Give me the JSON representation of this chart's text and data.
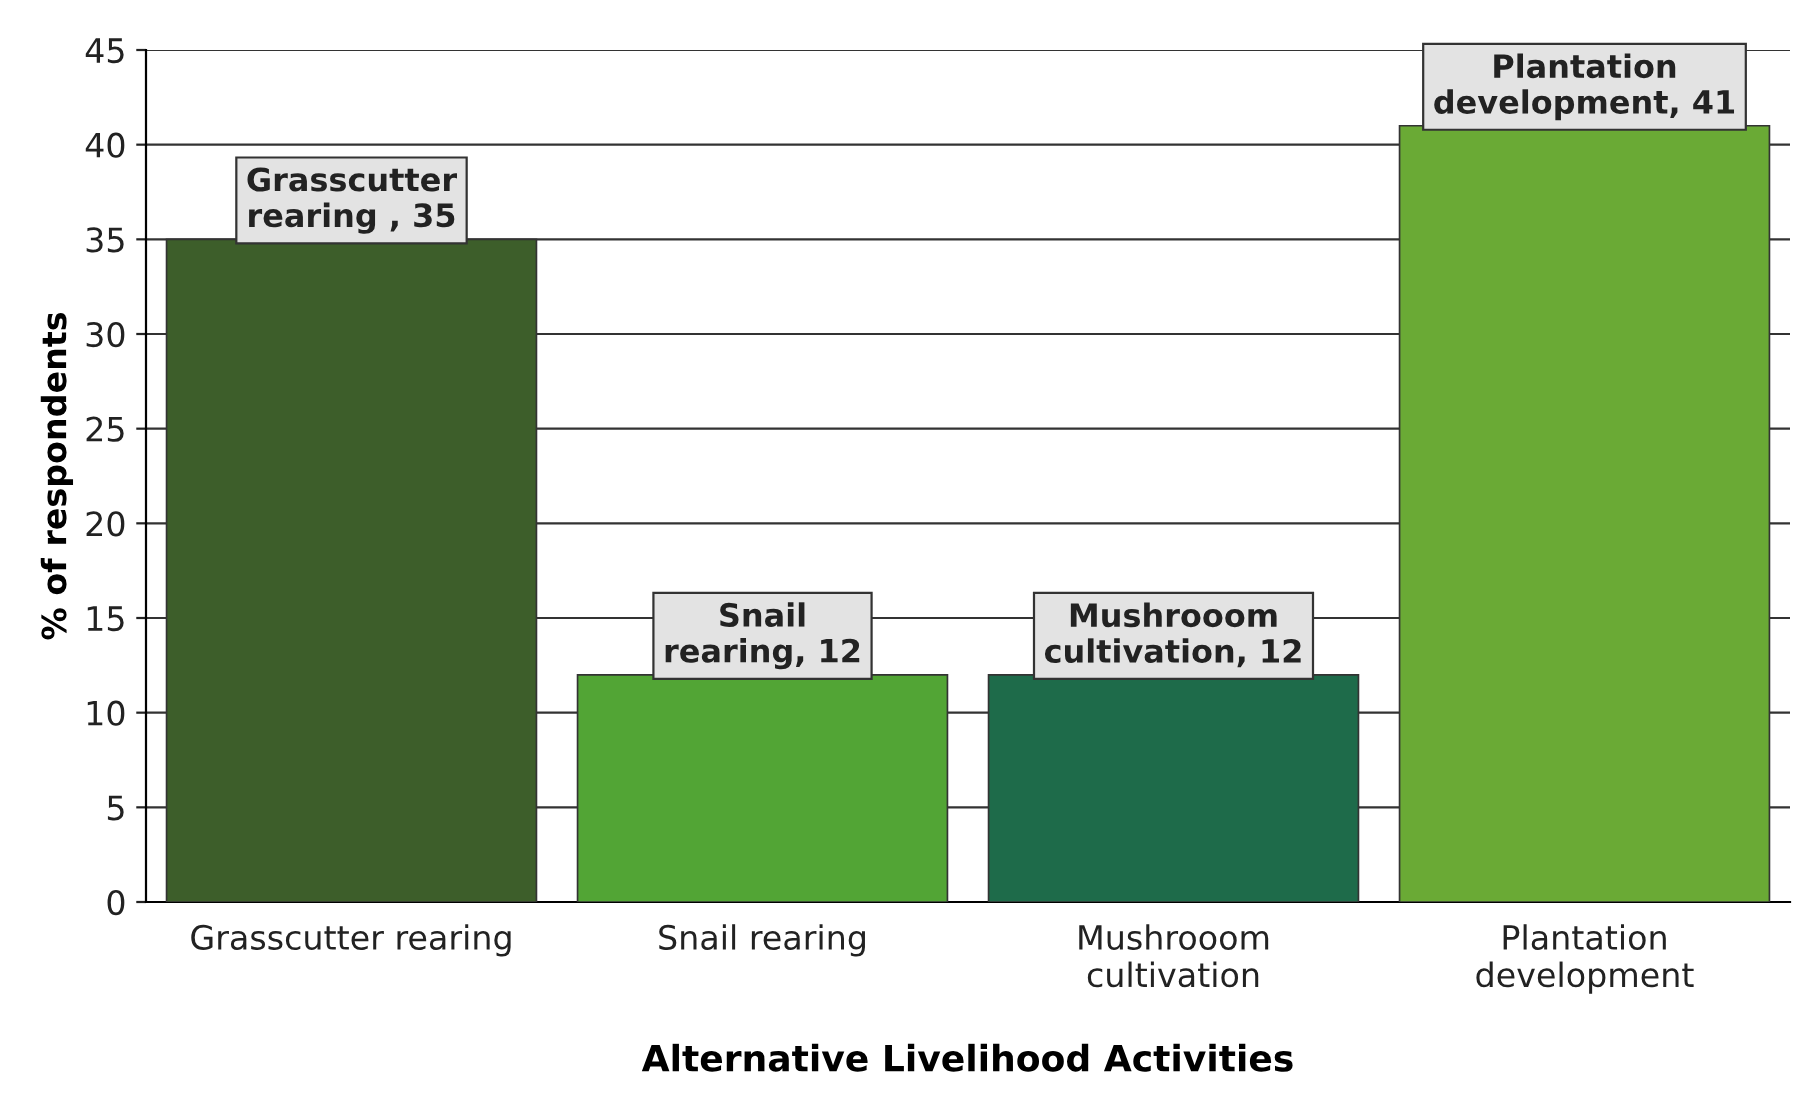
{
  "chart_data": {
    "type": "bar",
    "xlabel": "Alternative Livelihood Activities",
    "ylabel": "% of respondents",
    "categories": [
      "Grasscutter rearing",
      "Snail rearing",
      "Mushrooom\ncultivation",
      "Plantation\ndevelopment"
    ],
    "values": [
      35,
      12,
      12,
      41
    ],
    "colors": [
      "#3d5e2a",
      "#52a535",
      "#1e6b4a",
      "#6aaa35"
    ],
    "value_labels": [
      "Grasscutter\nrearing , 35",
      "Snail\nrearing, 12",
      "Mushrooom\ncultivation, 12",
      "Plantation\ndevelopment, 41"
    ],
    "ylim": [
      0,
      45
    ],
    "yticks": [
      0,
      5,
      10,
      15,
      20,
      25,
      30,
      35,
      40,
      45
    ],
    "grid": "y",
    "legend": false
  }
}
